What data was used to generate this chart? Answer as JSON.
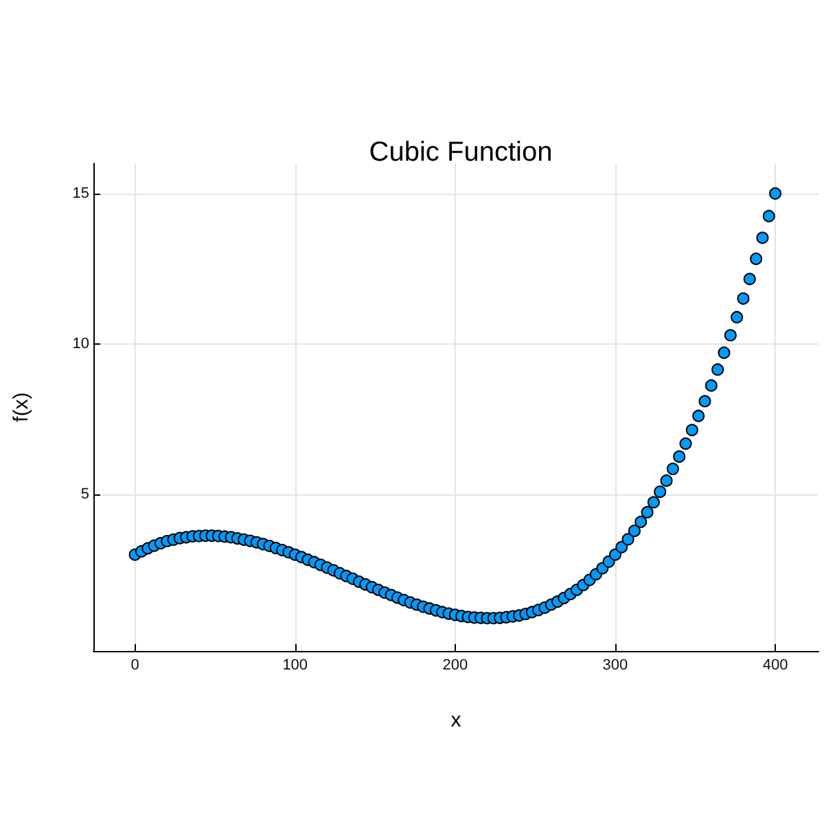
{
  "chart_data": {
    "type": "scatter",
    "title": "Cubic Function",
    "xlabel": "x",
    "ylabel": "f(x)",
    "x": [
      0,
      4,
      8,
      12,
      16,
      20,
      24,
      28,
      32,
      36,
      40,
      44,
      48,
      52,
      56,
      60,
      64,
      68,
      72,
      76,
      80,
      84,
      88,
      92,
      96,
      100,
      104,
      108,
      112,
      116,
      120,
      124,
      128,
      132,
      136,
      140,
      144,
      148,
      152,
      156,
      160,
      164,
      168,
      172,
      176,
      180,
      184,
      188,
      192,
      196,
      200,
      204,
      208,
      212,
      216,
      220,
      224,
      228,
      232,
      236,
      240,
      244,
      248,
      252,
      256,
      260,
      264,
      268,
      272,
      276,
      280,
      284,
      288,
      292,
      296,
      300,
      304,
      308,
      312,
      316,
      320,
      324,
      328,
      332,
      336,
      340,
      344,
      348,
      352,
      356,
      360,
      364,
      368,
      372,
      376,
      380,
      384,
      388,
      392,
      396,
      400
    ],
    "values": [
      3.0,
      3.11,
      3.21,
      3.3,
      3.38,
      3.45,
      3.5,
      3.55,
      3.58,
      3.61,
      3.62,
      3.63,
      3.63,
      3.62,
      3.6,
      3.58,
      3.54,
      3.5,
      3.46,
      3.41,
      3.35,
      3.29,
      3.22,
      3.15,
      3.08,
      3.0,
      2.92,
      2.83,
      2.75,
      2.66,
      2.57,
      2.48,
      2.38,
      2.29,
      2.2,
      2.1,
      2.01,
      1.92,
      1.83,
      1.74,
      1.66,
      1.57,
      1.49,
      1.41,
      1.34,
      1.27,
      1.21,
      1.15,
      1.09,
      1.04,
      1.0,
      0.96,
      0.93,
      0.91,
      0.9,
      0.89,
      0.89,
      0.9,
      0.92,
      0.95,
      0.98,
      1.03,
      1.09,
      1.16,
      1.24,
      1.34,
      1.44,
      1.56,
      1.69,
      1.83,
      1.99,
      2.16,
      2.35,
      2.55,
      2.77,
      3.0,
      3.25,
      3.51,
      3.79,
      4.09,
      4.41,
      4.74,
      5.09,
      5.46,
      5.85,
      6.26,
      6.69,
      7.14,
      7.61,
      8.1,
      8.62,
      9.15,
      9.71,
      10.29,
      10.89,
      11.51,
      12.16,
      12.83,
      13.53,
      14.25,
      15.0
    ],
    "color": "#009afa",
    "marker": "circle",
    "xlim": [
      -26,
      427
    ],
    "ylim": [
      -0.2,
      16
    ],
    "xticks": [
      0,
      100,
      200,
      300,
      400
    ],
    "yticks": [
      5,
      10,
      15
    ],
    "grid": true
  }
}
